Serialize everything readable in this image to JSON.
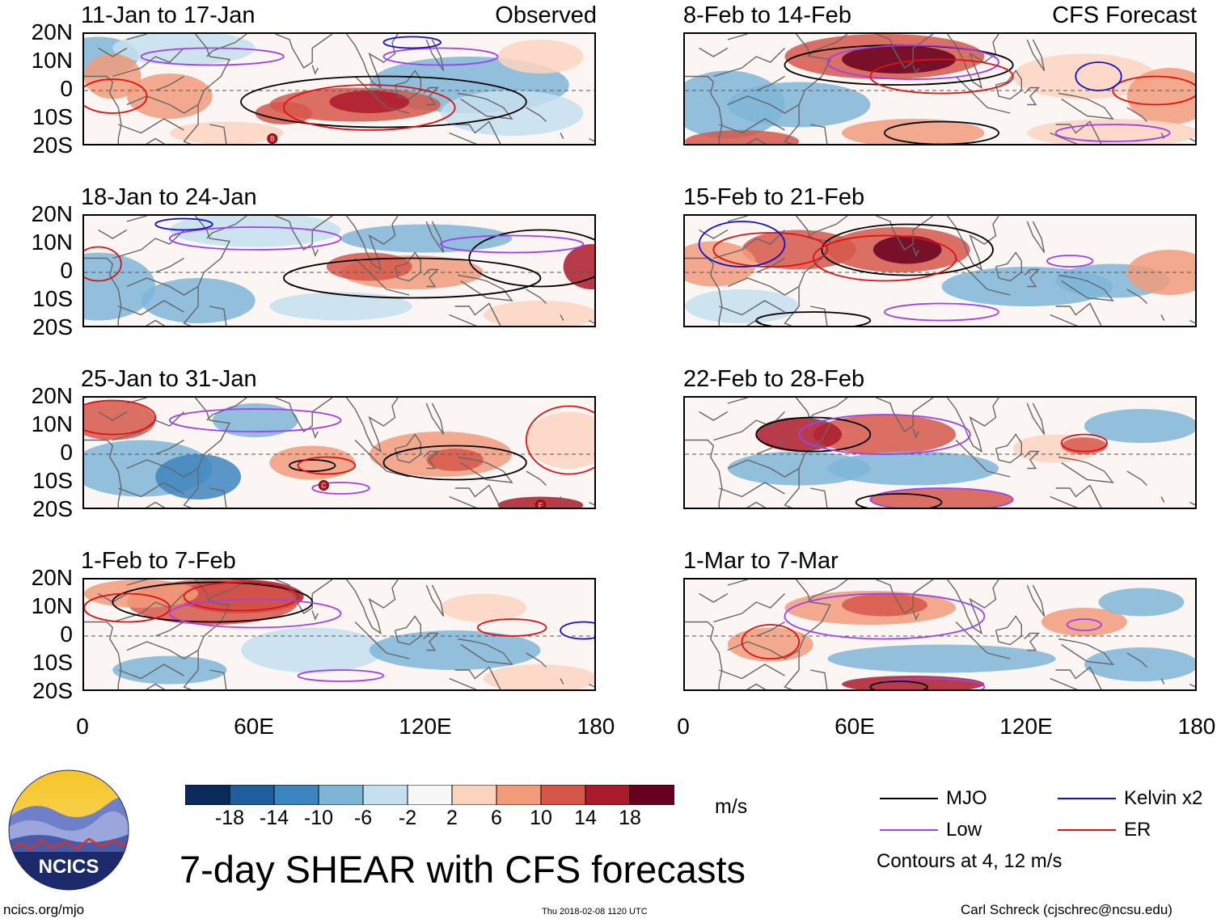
{
  "left_header": "Observed",
  "right_header": "CFS Forecast",
  "panels_left": [
    {
      "title": "11-Jan to 17-Jan",
      "pattern": "obs1"
    },
    {
      "title": "18-Jan to 24-Jan",
      "pattern": "obs2"
    },
    {
      "title": "25-Jan to 31-Jan",
      "pattern": "obs3"
    },
    {
      "title": "1-Feb to 7-Feb",
      "pattern": "obs4"
    }
  ],
  "panels_right": [
    {
      "title": "8-Feb to 14-Feb",
      "pattern": "fc1"
    },
    {
      "title": "15-Feb to 21-Feb",
      "pattern": "fc2"
    },
    {
      "title": "22-Feb to 28-Feb",
      "pattern": "fc3"
    },
    {
      "title": "1-Mar to 7-Mar",
      "pattern": "fc4"
    }
  ],
  "lat_labels": [
    "20N",
    "10N",
    "0",
    "10S",
    "20S"
  ],
  "lon_labels": [
    "0",
    "60E",
    "120E",
    "180"
  ],
  "storm_markers": [
    {
      "panel": 0,
      "label": "B",
      "lon": 66,
      "lat": -17
    },
    {
      "panel": 2,
      "label": "C",
      "lon": 84,
      "lat": -11
    },
    {
      "panel": 2,
      "label": "F",
      "lon": 160,
      "lat": -18
    }
  ],
  "colorbar": {
    "labels": [
      "-18",
      "-14",
      "-10",
      "-6",
      "-2",
      "2",
      "6",
      "10",
      "14",
      "18"
    ],
    "colors": [
      "#0b2a5c",
      "#1f5d9c",
      "#3d85c0",
      "#7eb5d7",
      "#c6dfee",
      "#f7f7f7",
      "#fbd3bf",
      "#f19b7a",
      "#d6574a",
      "#ab1a2c",
      "#67001f"
    ],
    "units": "m/s"
  },
  "legend": {
    "items": [
      {
        "label": "MJO",
        "color": "#000000"
      },
      {
        "label": "Kelvin x2",
        "color": "#1010d0"
      },
      {
        "label": "Low",
        "color": "#a040ee"
      },
      {
        "label": "ER",
        "color": "#e01010"
      }
    ],
    "note": "Contours at 4, 12 m/s"
  },
  "logo_text": "NCICS",
  "main_title": "7-day SHEAR with CFS forecasts",
  "footer_left": "ncics.org/mjo",
  "footer_center": "Thu 2018-02-08 1120 UTC",
  "footer_right": "Carl Schreck (cjschrec@ncsu.edu)"
}
